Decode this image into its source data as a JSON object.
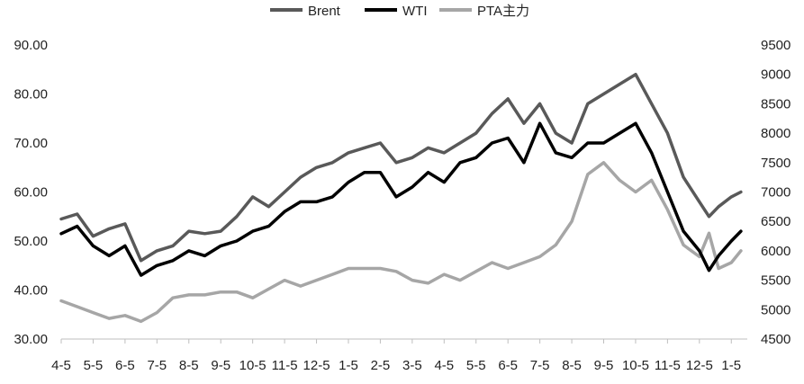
{
  "chart_data": {
    "type": "line",
    "legend": {
      "position": "top"
    },
    "grid": false,
    "categories": [
      "4-5",
      "5-5",
      "6-5",
      "7-5",
      "8-5",
      "9-5",
      "10-5",
      "11-5",
      "12-5",
      "1-5",
      "2-5",
      "3-5",
      "4-5",
      "5-5",
      "6-5",
      "7-5",
      "8-5",
      "9-5",
      "10-5",
      "11-5",
      "12-5",
      "1-5"
    ],
    "y_left": {
      "ylim": [
        30,
        90
      ],
      "ticks": [
        "30.00",
        "40.00",
        "50.00",
        "60.00",
        "70.00",
        "80.00",
        "90.00"
      ]
    },
    "y_right": {
      "ylim": [
        4500,
        9500
      ],
      "ticks": [
        "4500",
        "5000",
        "5500",
        "6000",
        "6500",
        "7000",
        "7500",
        "8000",
        "8500",
        "9000",
        "9500"
      ]
    },
    "series": [
      {
        "name": "Brent",
        "axis": "left",
        "color": "#595959",
        "x": [
          0,
          0.5,
          1,
          1.5,
          2,
          2.5,
          3,
          3.5,
          4,
          4.5,
          5,
          5.5,
          6,
          6.5,
          7,
          7.5,
          8,
          8.5,
          9,
          9.5,
          10,
          10.5,
          11,
          11.5,
          12,
          12.5,
          13,
          13.5,
          14,
          14.5,
          15,
          15.5,
          16,
          16.5,
          17,
          17.5,
          18,
          18.5,
          19,
          19.5,
          20,
          20.3,
          20.6,
          21,
          21.3
        ],
        "values": [
          54.5,
          55.5,
          51,
          52.5,
          53.5,
          46,
          48,
          49,
          52,
          51.5,
          52,
          55,
          59,
          57,
          60,
          63,
          65,
          66,
          68,
          69,
          70,
          66,
          67,
          69,
          68,
          70,
          72,
          76,
          79,
          74,
          78,
          72,
          70,
          78,
          80,
          82,
          84,
          78,
          72,
          63,
          58,
          55,
          57,
          59,
          60
        ]
      },
      {
        "name": "WTI",
        "axis": "left",
        "color": "#000000",
        "x": [
          0,
          0.5,
          1,
          1.5,
          2,
          2.5,
          3,
          3.5,
          4,
          4.5,
          5,
          5.5,
          6,
          6.5,
          7,
          7.5,
          8,
          8.5,
          9,
          9.5,
          10,
          10.5,
          11,
          11.5,
          12,
          12.5,
          13,
          13.5,
          14,
          14.5,
          15,
          15.5,
          16,
          16.5,
          17,
          17.5,
          18,
          18.5,
          19,
          19.5,
          20,
          20.3,
          20.6,
          21,
          21.3
        ],
        "values": [
          51.5,
          53,
          49,
          47,
          49,
          43,
          45,
          46,
          48,
          47,
          49,
          50,
          52,
          53,
          56,
          58,
          58,
          59,
          62,
          64,
          64,
          59,
          61,
          64,
          62,
          66,
          67,
          70,
          71,
          66,
          74,
          68,
          67,
          70,
          70,
          72,
          74,
          68,
          60,
          52,
          48,
          44,
          47,
          50,
          52
        ]
      },
      {
        "name": "PTA主力",
        "axis": "right",
        "color": "#a6a6a6",
        "x": [
          0,
          0.5,
          1,
          1.5,
          2,
          2.5,
          3,
          3.5,
          4,
          4.5,
          5,
          5.5,
          6,
          6.5,
          7,
          7.5,
          8,
          8.5,
          9,
          9.5,
          10,
          10.5,
          11,
          11.5,
          12,
          12.5,
          13,
          13.5,
          14,
          14.5,
          15,
          15.5,
          16,
          16.5,
          17,
          17.5,
          18,
          18.5,
          19,
          19.5,
          20,
          20.3,
          20.6,
          21,
          21.3
        ],
        "values": [
          5150,
          5050,
          4950,
          4850,
          4900,
          4800,
          4950,
          5200,
          5250,
          5250,
          5300,
          5300,
          5200,
          5350,
          5500,
          5400,
          5500,
          5600,
          5700,
          5700,
          5700,
          5650,
          5500,
          5450,
          5600,
          5500,
          5650,
          5800,
          5700,
          5800,
          5900,
          6100,
          6500,
          7300,
          7500,
          7200,
          7000,
          7200,
          6700,
          6100,
          5900,
          6300,
          5700,
          5800,
          6000
        ]
      }
    ]
  }
}
